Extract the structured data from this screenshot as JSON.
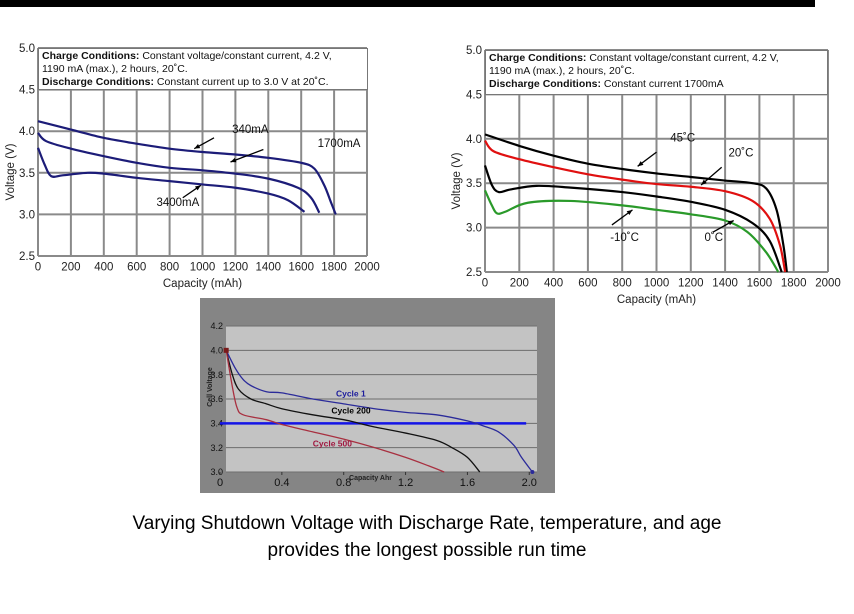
{
  "chart_data": [
    {
      "type": "line",
      "id": "rate",
      "conditions": {
        "charge_label": "Charge Conditions:",
        "charge_text": " Constant voltage/constant current, 4.2 V,",
        "charge_text2": "1190 mA (max.), 2 hours, 20˚C.",
        "discharge_label": "Discharge Conditions:",
        "discharge_text": " Constant current up to 3.0 V at 20˚C."
      },
      "xlabel": "Capacity (mAh)",
      "ylabel": "Voltage (V)",
      "xlim": [
        0,
        2000
      ],
      "ylim": [
        2.5,
        5.0
      ],
      "xticks": [
        0,
        200,
        400,
        600,
        800,
        1000,
        1200,
        1400,
        1600,
        1800,
        2000
      ],
      "yticks": [
        2.5,
        3.0,
        3.5,
        4.0,
        4.5,
        5.0
      ],
      "ytick_labels": [
        "2.5",
        "3.0",
        "3.5",
        "4.0",
        "4.5",
        "5.0"
      ],
      "grid": true,
      "series": [
        {
          "name": "340mA",
          "color": "#1c1c78",
          "points": [
            [
              0,
              4.12
            ],
            [
              200,
              4.02
            ],
            [
              400,
              3.92
            ],
            [
              600,
              3.85
            ],
            [
              800,
              3.79
            ],
            [
              1000,
              3.75
            ],
            [
              1200,
              3.72
            ],
            [
              1400,
              3.68
            ],
            [
              1600,
              3.62
            ],
            [
              1680,
              3.55
            ],
            [
              1740,
              3.35
            ],
            [
              1780,
              3.15
            ],
            [
              1810,
              3.0
            ]
          ]
        },
        {
          "name": "1700mA",
          "color": "#1c1c78",
          "points": [
            [
              0,
              3.98
            ],
            [
              50,
              3.88
            ],
            [
              200,
              3.79
            ],
            [
              400,
              3.7
            ],
            [
              600,
              3.62
            ],
            [
              800,
              3.56
            ],
            [
              1000,
              3.53
            ],
            [
              1200,
              3.49
            ],
            [
              1400,
              3.43
            ],
            [
              1580,
              3.32
            ],
            [
              1660,
              3.2
            ],
            [
              1710,
              3.02
            ]
          ]
        },
        {
          "name": "3400mA",
          "color": "#1c1c78",
          "points": [
            [
              0,
              3.8
            ],
            [
              40,
              3.6
            ],
            [
              80,
              3.46
            ],
            [
              150,
              3.47
            ],
            [
              300,
              3.5
            ],
            [
              400,
              3.49
            ],
            [
              600,
              3.44
            ],
            [
              800,
              3.4
            ],
            [
              1000,
              3.36
            ],
            [
              1200,
              3.32
            ],
            [
              1400,
              3.25
            ],
            [
              1520,
              3.17
            ],
            [
              1620,
              3.03
            ]
          ]
        }
      ],
      "annotations": [
        {
          "text": "340mA",
          "at": [
            1180,
            3.98
          ],
          "arrow_from": [
            1070,
            3.92
          ],
          "arrow_to": [
            950,
            3.79
          ]
        },
        {
          "text": "1700mA",
          "at": [
            1700,
            3.81
          ],
          "arrow_from": [
            1370,
            3.78
          ],
          "arrow_to": [
            1170,
            3.63
          ]
        },
        {
          "text": "3400mA",
          "at": [
            720,
            3.1
          ],
          "arrow_from": [
            880,
            3.2
          ],
          "arrow_to": [
            990,
            3.35
          ]
        }
      ]
    },
    {
      "type": "line",
      "id": "temperature",
      "conditions": {
        "charge_label": "Charge Conditions:",
        "charge_text": " Constant voltage/constant current, 4.2 V,",
        "charge_text2": "1190 mA (max.), 2 hours, 20˚C.",
        "discharge_label": "Discharge Conditions:",
        "discharge_text": " Constant current 1700mA"
      },
      "xlabel": "Capacity (mAh)",
      "ylabel": "Voltage (V)",
      "xlim": [
        0,
        2000
      ],
      "ylim": [
        2.5,
        5.0
      ],
      "xticks": [
        0,
        200,
        400,
        600,
        800,
        1000,
        1200,
        1400,
        1600,
        1800,
        2000
      ],
      "yticks": [
        2.5,
        3.0,
        3.5,
        4.0,
        4.5,
        5.0
      ],
      "ytick_labels": [
        "2.5",
        "3.0",
        "3.5",
        "4.0",
        "4.5",
        "5.0"
      ],
      "grid": true,
      "series": [
        {
          "name": "45˚C",
          "color": "#000000",
          "points": [
            [
              0,
              4.05
            ],
            [
              200,
              3.92
            ],
            [
              400,
              3.81
            ],
            [
              600,
              3.72
            ],
            [
              800,
              3.66
            ],
            [
              1000,
              3.61
            ],
            [
              1200,
              3.57
            ],
            [
              1400,
              3.53
            ],
            [
              1560,
              3.5
            ],
            [
              1640,
              3.44
            ],
            [
              1700,
              3.2
            ],
            [
              1740,
              2.8
            ],
            [
              1760,
              2.5
            ]
          ]
        },
        {
          "name": "20˚C",
          "color": "#e01010",
          "points": [
            [
              0,
              3.98
            ],
            [
              50,
              3.86
            ],
            [
              200,
              3.77
            ],
            [
              400,
              3.68
            ],
            [
              600,
              3.6
            ],
            [
              800,
              3.54
            ],
            [
              1000,
              3.49
            ],
            [
              1200,
              3.46
            ],
            [
              1400,
              3.41
            ],
            [
              1560,
              3.3
            ],
            [
              1660,
              3.1
            ],
            [
              1720,
              2.8
            ],
            [
              1750,
              2.5
            ]
          ]
        },
        {
          "name": "0˚C",
          "color": "#000000",
          "points": [
            [
              0,
              3.7
            ],
            [
              40,
              3.48
            ],
            [
              80,
              3.4
            ],
            [
              150,
              3.43
            ],
            [
              300,
              3.47
            ],
            [
              500,
              3.45
            ],
            [
              800,
              3.4
            ],
            [
              1000,
              3.35
            ],
            [
              1200,
              3.29
            ],
            [
              1400,
              3.2
            ],
            [
              1560,
              3.05
            ],
            [
              1660,
              2.85
            ],
            [
              1730,
              2.5
            ]
          ]
        },
        {
          "name": "-10˚C",
          "color": "#2a9a2a",
          "points": [
            [
              0,
              3.42
            ],
            [
              40,
              3.25
            ],
            [
              70,
              3.16
            ],
            [
              120,
              3.18
            ],
            [
              250,
              3.28
            ],
            [
              500,
              3.3
            ],
            [
              800,
              3.25
            ],
            [
              1000,
              3.2
            ],
            [
              1200,
              3.15
            ],
            [
              1400,
              3.08
            ],
            [
              1530,
              2.95
            ],
            [
              1640,
              2.72
            ],
            [
              1710,
              2.5
            ]
          ]
        }
      ],
      "annotations": [
        {
          "text": "45˚C",
          "at": [
            1080,
            3.97
          ],
          "arrow_from": [
            1000,
            3.85
          ],
          "arrow_to": [
            890,
            3.69
          ]
        },
        {
          "text": "20˚C",
          "at": [
            1420,
            3.8
          ],
          "arrow_from": [
            1380,
            3.68
          ],
          "arrow_to": [
            1260,
            3.48
          ]
        },
        {
          "text": "-10˚C",
          "at": [
            730,
            2.85
          ],
          "arrow_from": [
            740,
            3.03
          ],
          "arrow_to": [
            860,
            3.2
          ]
        },
        {
          "text": "0˚C",
          "at": [
            1280,
            2.85
          ],
          "arrow_from": [
            1330,
            2.95
          ],
          "arrow_to": [
            1450,
            3.08
          ]
        }
      ]
    },
    {
      "type": "line",
      "id": "cycles",
      "xlabel": "Capacity Ahr",
      "ylabel": "Cell Voltage",
      "xlim": [
        0,
        2.05
      ],
      "ylim": [
        3.0,
        4.2
      ],
      "xticks": [
        0,
        0.4,
        0.8,
        1.2,
        1.6,
        2.0
      ],
      "xtick_labels": [
        "0",
        "0.4",
        "0.8",
        "1.2",
        "1.6",
        "2.0"
      ],
      "yticks": [
        3.0,
        3.2,
        3.4,
        3.6,
        3.8,
        4.0,
        4.2
      ],
      "ytick_labels": [
        "3.0",
        "3.2",
        "3.4",
        "3.6",
        "3.8",
        "4.0",
        "4.2"
      ],
      "grid": true,
      "series": [
        {
          "name": "Cycle 1",
          "color": "#2b2b9a",
          "label_color": "#1c1c9c",
          "label_at": [
            0.75,
            3.62
          ],
          "points": [
            [
              0.04,
              4.0
            ],
            [
              0.1,
              3.85
            ],
            [
              0.15,
              3.76
            ],
            [
              0.2,
              3.71
            ],
            [
              0.3,
              3.66
            ],
            [
              0.4,
              3.65
            ],
            [
              0.6,
              3.6
            ],
            [
              0.8,
              3.56
            ],
            [
              1.0,
              3.52
            ],
            [
              1.2,
              3.49
            ],
            [
              1.4,
              3.47
            ],
            [
              1.6,
              3.42
            ],
            [
              1.7,
              3.38
            ],
            [
              1.8,
              3.33
            ],
            [
              1.9,
              3.22
            ],
            [
              1.95,
              3.12
            ],
            [
              2.02,
              3.0
            ]
          ]
        },
        {
          "name": "Cycle 200",
          "color": "#111111",
          "label_color": "#000000",
          "label_at": [
            0.72,
            3.48
          ],
          "points": [
            [
              0.04,
              4.0
            ],
            [
              0.08,
              3.8
            ],
            [
              0.12,
              3.68
            ],
            [
              0.2,
              3.6
            ],
            [
              0.3,
              3.56
            ],
            [
              0.4,
              3.52
            ],
            [
              0.6,
              3.47
            ],
            [
              0.8,
              3.43
            ],
            [
              0.9,
              3.4
            ],
            [
              1.0,
              3.37
            ],
            [
              1.2,
              3.32
            ],
            [
              1.4,
              3.26
            ],
            [
              1.5,
              3.2
            ],
            [
              1.6,
              3.12
            ],
            [
              1.68,
              3.0
            ]
          ]
        },
        {
          "name": "Cycle 500",
          "color": "#a83040",
          "label_color": "#a01840",
          "label_at": [
            0.6,
            3.21
          ],
          "points": [
            [
              0.04,
              4.0
            ],
            [
              0.08,
              3.7
            ],
            [
              0.11,
              3.53
            ],
            [
              0.15,
              3.47
            ],
            [
              0.3,
              3.43
            ],
            [
              0.4,
              3.39
            ],
            [
              0.6,
              3.33
            ],
            [
              0.8,
              3.27
            ],
            [
              1.0,
              3.2
            ],
            [
              1.2,
              3.12
            ],
            [
              1.35,
              3.05
            ],
            [
              1.45,
              3.0
            ]
          ]
        }
      ],
      "shutdown_line": {
        "voltage": 3.4,
        "x_range": [
          0,
          1.98
        ],
        "color": "#1414e6"
      }
    }
  ],
  "caption": {
    "line1": "Varying Shutdown Voltage with Discharge Rate, temperature, and age",
    "line2": "provides the longest possible run time"
  }
}
